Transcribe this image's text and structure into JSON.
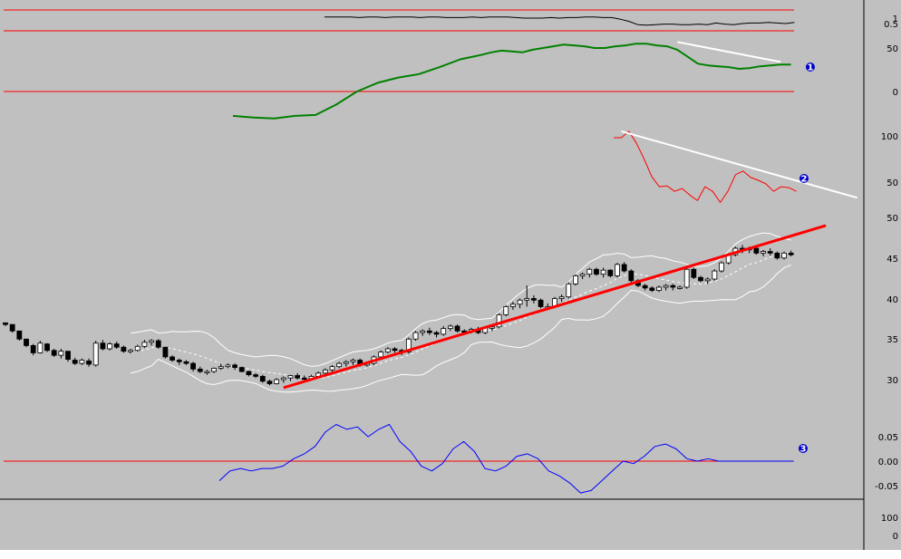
{
  "chart_data": [
    {
      "type": "line",
      "panel": "oscillator-a",
      "grid": false,
      "y_ticks": [
        "1",
        "0.5"
      ],
      "reference_levels": [
        1.0,
        0.5
      ],
      "series": [
        {
          "color": "#000000",
          "x": [
            0,
            2,
            4,
            6,
            8,
            10,
            12,
            14,
            16,
            18,
            20,
            22,
            24,
            26,
            28,
            30,
            32,
            34,
            36,
            38,
            40,
            42,
            44,
            46,
            48,
            50,
            52,
            54,
            56,
            58,
            60,
            62,
            64,
            66,
            68,
            70,
            72,
            74,
            76,
            78,
            80,
            82,
            84,
            86,
            88,
            90,
            92,
            94,
            96,
            98,
            100,
            102,
            104,
            106,
            108
          ],
          "values": [
            1.1,
            1.1,
            1.1,
            1.1,
            1.05,
            1.1,
            1.1,
            1.05,
            1.1,
            1.1,
            1.1,
            1.05,
            1.1,
            1.1,
            1.05,
            1.05,
            1.05,
            1.1,
            1.05,
            1.1,
            1.1,
            1.1,
            1.05,
            1.0,
            1.0,
            1.0,
            1.05,
            1.0,
            1.05,
            1.05,
            1.1,
            1.1,
            1.05,
            1.05,
            0.9,
            0.7,
            0.4,
            0.35,
            0.4,
            0.45,
            0.45,
            0.4,
            0.4,
            0.45,
            0.4,
            0.55,
            0.45,
            0.4,
            0.5,
            0.55,
            0.55,
            0.6,
            0.55,
            0.5,
            0.6
          ]
        }
      ]
    },
    {
      "type": "line",
      "panel": "momentum",
      "grid": false,
      "y_ticks": [
        "50",
        "0"
      ],
      "reference_levels": [
        0
      ],
      "annotation": "1",
      "series": [
        {
          "color": "#008000",
          "x": [
            0,
            4,
            8,
            12,
            16,
            20,
            24,
            28,
            32,
            36,
            40,
            44,
            48,
            50,
            52,
            54,
            56,
            58,
            60,
            62,
            64,
            66,
            68,
            70,
            72,
            74,
            76,
            78,
            80,
            82,
            84,
            86,
            88,
            90,
            92,
            94,
            96,
            98,
            100,
            102,
            104,
            106,
            108
          ],
          "values": [
            -28,
            -30,
            -31,
            -28,
            -27,
            -15,
            0,
            10,
            16,
            20,
            28,
            37,
            42,
            45,
            47,
            46,
            45,
            48,
            50,
            52,
            54,
            53,
            52,
            50,
            50,
            52,
            53,
            55,
            55,
            53,
            52,
            48,
            40,
            32,
            30,
            29,
            28,
            26,
            27,
            29,
            30,
            31,
            31
          ]
        },
        {
          "color": "#ffffff",
          "kind": "trendline",
          "x": [
            86,
            106
          ],
          "values": [
            57,
            34
          ]
        }
      ]
    },
    {
      "type": "line",
      "panel": "indicator-b",
      "grid": false,
      "y_ticks": [
        "100",
        "50"
      ],
      "annotation": "2",
      "series": [
        {
          "color": "#ff0000",
          "x": [
            84,
            85,
            86,
            87,
            88,
            89,
            90,
            91,
            92,
            93,
            94,
            95,
            96,
            97,
            98,
            99,
            100,
            101,
            102,
            103,
            104,
            105,
            106,
            107,
            108
          ],
          "values": [
            98,
            98,
            105,
            92,
            75,
            56,
            45,
            46,
            40,
            43,
            36,
            30,
            45,
            40,
            28,
            40,
            58,
            62,
            55,
            52,
            48,
            40,
            45,
            44,
            40
          ]
        },
        {
          "color": "#ffffff",
          "kind": "trendline",
          "x": [
            85,
            116
          ],
          "values": [
            105,
            33
          ]
        }
      ]
    },
    {
      "type": "candlestick",
      "panel": "price",
      "grid": false,
      "y_ticks": [
        "50",
        "45",
        "40",
        "35",
        "30"
      ],
      "trendline": {
        "color": "#ff0000",
        "x": [
          40,
          118
        ],
        "values": [
          29.0,
          49.0
        ]
      },
      "bands": {
        "color": "#ffffff",
        "x_from": 18
      },
      "ohlc": [
        [
          37.0,
          37.0,
          36.6,
          36.8
        ],
        [
          36.8,
          36.8,
          35.8,
          36.0
        ],
        [
          36.0,
          36.0,
          34.8,
          35.0
        ],
        [
          35.0,
          35.0,
          34.0,
          34.2
        ],
        [
          34.2,
          34.4,
          33.0,
          33.3
        ],
        [
          33.3,
          34.8,
          33.2,
          34.5
        ],
        [
          34.4,
          34.5,
          33.4,
          33.6
        ],
        [
          33.6,
          33.8,
          32.8,
          33.0
        ],
        [
          33.0,
          33.8,
          32.6,
          33.5
        ],
        [
          33.5,
          33.5,
          32.2,
          32.5
        ],
        [
          32.4,
          32.7,
          31.8,
          32.0
        ],
        [
          32.0,
          32.6,
          31.8,
          32.4
        ],
        [
          32.3,
          32.6,
          31.6,
          31.9
        ],
        [
          31.8,
          34.8,
          31.6,
          34.5
        ],
        [
          34.5,
          34.9,
          33.6,
          33.8
        ],
        [
          33.8,
          34.6,
          33.6,
          34.4
        ],
        [
          34.4,
          34.7,
          33.8,
          34.0
        ],
        [
          34.0,
          34.2,
          33.3,
          33.5
        ],
        [
          33.5,
          33.8,
          33.2,
          33.6
        ],
        [
          33.6,
          34.3,
          33.4,
          34.1
        ],
        [
          34.1,
          34.9,
          33.9,
          34.6
        ],
        [
          34.6,
          35.0,
          34.2,
          34.8
        ],
        [
          34.8,
          35.0,
          33.8,
          34.0
        ],
        [
          34.0,
          34.0,
          32.6,
          32.8
        ],
        [
          32.8,
          33.0,
          32.2,
          32.4
        ],
        [
          32.4,
          32.6,
          31.8,
          32.2
        ],
        [
          32.2,
          32.4,
          31.8,
          32.0
        ],
        [
          32.0,
          32.2,
          31.0,
          31.3
        ],
        [
          31.3,
          31.6,
          30.8,
          31.0
        ],
        [
          31.0,
          31.2,
          30.6,
          31.0
        ],
        [
          31.0,
          31.5,
          30.8,
          31.4
        ],
        [
          31.4,
          32.0,
          31.2,
          31.6
        ],
        [
          31.6,
          32.0,
          31.4,
          31.8
        ],
        [
          31.8,
          32.0,
          31.2,
          31.5
        ],
        [
          31.5,
          31.6,
          30.9,
          31.0
        ],
        [
          31.0,
          31.1,
          30.4,
          30.6
        ],
        [
          30.6,
          30.8,
          30.2,
          30.4
        ],
        [
          30.4,
          30.6,
          29.6,
          29.8
        ],
        [
          29.8,
          30.0,
          29.3,
          29.5
        ],
        [
          29.5,
          30.2,
          29.4,
          30.0
        ],
        [
          30.0,
          30.4,
          29.6,
          30.2
        ],
        [
          30.2,
          30.6,
          29.8,
          30.5
        ],
        [
          30.5,
          30.8,
          30.0,
          30.2
        ],
        [
          30.2,
          30.5,
          29.8,
          30.1
        ],
        [
          30.1,
          30.6,
          29.9,
          30.4
        ],
        [
          30.4,
          31.0,
          30.2,
          30.8
        ],
        [
          30.8,
          31.4,
          30.6,
          31.2
        ],
        [
          31.2,
          31.8,
          31.0,
          31.6
        ],
        [
          31.6,
          32.2,
          31.4,
          32.0
        ],
        [
          32.0,
          32.4,
          31.6,
          32.2
        ],
        [
          32.2,
          32.6,
          31.8,
          32.4
        ],
        [
          32.4,
          32.6,
          31.6,
          31.8
        ],
        [
          31.8,
          32.2,
          31.6,
          32.0
        ],
        [
          32.0,
          33.0,
          31.8,
          32.8
        ],
        [
          32.8,
          33.6,
          32.6,
          33.4
        ],
        [
          33.4,
          34.0,
          33.2,
          33.8
        ],
        [
          33.8,
          34.0,
          33.3,
          33.6
        ],
        [
          33.6,
          33.8,
          33.0,
          33.4
        ],
        [
          33.4,
          35.2,
          33.2,
          35.0
        ],
        [
          35.0,
          36.0,
          34.8,
          35.8
        ],
        [
          35.8,
          36.2,
          35.4,
          36.0
        ],
        [
          36.0,
          36.4,
          35.5,
          35.8
        ],
        [
          35.8,
          36.0,
          35.2,
          35.6
        ],
        [
          35.6,
          36.6,
          35.4,
          36.3
        ],
        [
          36.3,
          36.8,
          36.0,
          36.6
        ],
        [
          36.6,
          36.8,
          35.8,
          36.0
        ],
        [
          36.0,
          36.2,
          35.6,
          35.9
        ],
        [
          35.9,
          36.4,
          35.7,
          36.2
        ],
        [
          36.2,
          36.5,
          35.6,
          35.8
        ],
        [
          35.8,
          36.6,
          35.6,
          36.4
        ],
        [
          36.4,
          36.8,
          36.0,
          36.5
        ],
        [
          36.5,
          38.2,
          36.3,
          38.0
        ],
        [
          38.0,
          39.2,
          37.8,
          39.0
        ],
        [
          39.0,
          39.6,
          38.6,
          39.3
        ],
        [
          39.3,
          40.0,
          38.8,
          39.8
        ],
        [
          39.8,
          41.6,
          39.0,
          40.0
        ],
        [
          40.0,
          40.4,
          39.4,
          39.8
        ],
        [
          39.8,
          40.0,
          38.8,
          39.0
        ],
        [
          39.0,
          39.4,
          38.6,
          39.0
        ],
        [
          39.0,
          40.2,
          38.8,
          40.0
        ],
        [
          40.0,
          40.5,
          39.6,
          40.2
        ],
        [
          40.2,
          42.0,
          40.0,
          41.8
        ],
        [
          41.8,
          43.0,
          41.6,
          42.8
        ],
        [
          42.8,
          43.2,
          42.4,
          43.0
        ],
        [
          43.0,
          43.8,
          42.6,
          43.6
        ],
        [
          43.6,
          43.8,
          42.8,
          43.0
        ],
        [
          43.0,
          43.8,
          42.6,
          43.5
        ],
        [
          43.5,
          43.6,
          42.6,
          42.8
        ],
        [
          42.8,
          44.4,
          42.6,
          44.2
        ],
        [
          44.2,
          44.5,
          43.2,
          43.4
        ],
        [
          43.4,
          43.6,
          42.0,
          42.2
        ],
        [
          42.2,
          42.4,
          41.4,
          41.6
        ],
        [
          41.6,
          41.8,
          41.0,
          41.3
        ],
        [
          41.3,
          41.5,
          40.8,
          41.0
        ],
        [
          41.0,
          41.6,
          40.8,
          41.4
        ],
        [
          41.4,
          41.8,
          41.0,
          41.6
        ],
        [
          41.6,
          41.8,
          41.0,
          41.4
        ],
        [
          41.4,
          41.6,
          41.1,
          41.4
        ],
        [
          41.4,
          43.8,
          41.2,
          43.6
        ],
        [
          43.6,
          43.8,
          42.4,
          42.6
        ],
        [
          42.6,
          42.8,
          42.0,
          42.2
        ],
        [
          42.2,
          42.6,
          41.8,
          42.4
        ],
        [
          42.4,
          43.6,
          42.2,
          43.4
        ],
        [
          43.4,
          44.6,
          43.2,
          44.4
        ],
        [
          44.4,
          45.6,
          44.2,
          45.4
        ],
        [
          45.4,
          46.4,
          45.2,
          46.2
        ],
        [
          46.2,
          46.6,
          45.6,
          46.0
        ],
        [
          46.0,
          46.4,
          45.6,
          46.2
        ],
        [
          46.2,
          46.6,
          45.4,
          45.6
        ],
        [
          45.6,
          46.0,
          45.2,
          45.8
        ],
        [
          45.8,
          46.2,
          45.3,
          45.6
        ],
        [
          45.6,
          45.8,
          44.8,
          45.0
        ],
        [
          45.0,
          45.8,
          44.8,
          45.6
        ],
        [
          45.6,
          45.9,
          45.2,
          45.4
        ]
      ]
    },
    {
      "type": "line",
      "panel": "oscillator-c",
      "grid": false,
      "y_ticks": [
        "0.05",
        "0.00",
        "-0.05"
      ],
      "reference_levels": [
        0
      ],
      "annotation": "3",
      "series": [
        {
          "color": "#0000ff",
          "x": [
            0,
            2,
            4,
            6,
            8,
            10,
            12,
            14,
            16,
            18,
            20,
            22,
            24,
            26,
            28,
            30,
            32,
            34,
            36,
            38,
            40,
            42,
            44,
            46,
            48,
            50,
            52,
            54,
            56,
            58,
            60,
            62,
            64,
            66,
            68,
            70,
            72,
            74,
            76,
            78,
            80,
            82,
            84,
            86,
            88,
            90,
            92,
            94,
            96,
            98,
            100,
            102,
            104,
            106,
            108
          ],
          "values": [
            -0.04,
            -0.02,
            -0.015,
            -0.02,
            -0.015,
            -0.015,
            -0.01,
            0.005,
            0.015,
            0.03,
            0.06,
            0.075,
            0.065,
            0.07,
            0.05,
            0.065,
            0.075,
            0.04,
            0.02,
            -0.01,
            -0.02,
            -0.005,
            0.025,
            0.04,
            0.02,
            -0.015,
            -0.02,
            -0.01,
            0.01,
            0.015,
            0.005,
            -0.02,
            -0.03,
            -0.045,
            -0.065,
            -0.06,
            -0.04,
            -0.02,
            0.0,
            -0.005,
            0.01,
            0.03,
            0.035,
            0.025,
            0.005,
            0.0,
            0.005,
            0.0,
            0.0,
            0.0,
            0.0,
            0.0,
            0.0,
            0.0,
            0.0
          ]
        }
      ]
    },
    {
      "type": "line",
      "panel": "bottom-strip",
      "grid": false,
      "y_ticks": [
        "100",
        "0"
      ],
      "series": []
    }
  ]
}
